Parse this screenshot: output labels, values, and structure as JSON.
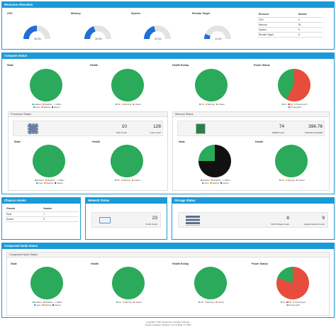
{
  "resource": {
    "title": "Resource Allocation",
    "gauges": [
      {
        "label": "CPU",
        "value": "50.0%",
        "fraction": 0.5,
        "color": "#1e6fd6"
      },
      {
        "label": "Memory",
        "value": "40.0%",
        "fraction": 0.4,
        "color": "#1e6fd6"
      },
      {
        "label": "System",
        "value": "42.0%",
        "fraction": 0.42,
        "color": "#1e6fd6"
      },
      {
        "label": "Remote Target",
        "value": "12.5%",
        "fraction": 0.125,
        "color": "#1e6fd6"
      }
    ],
    "table": {
      "headers": [
        "Resource",
        "Number"
      ],
      "rows": [
        [
          "CPU",
          "5"
        ],
        [
          "Memory",
          "50"
        ],
        [
          "System",
          "5"
        ],
        [
          "Remote Target",
          "8"
        ]
      ]
    }
  },
  "compute": {
    "title": "Compute Status",
    "pies": [
      {
        "label": "State",
        "legend": [
          [
            "Enabled",
            "#2aaa5a"
          ],
          [
            "Disabled",
            "#e74c3c"
          ],
          [
            "Offline",
            "#ccc"
          ],
          [
            "Intest",
            "#1e6fd6"
          ],
          [
            "Starting",
            "#f39c12"
          ],
          [
            "Absent",
            "#111"
          ]
        ]
      },
      {
        "label": "Health",
        "legend": [
          [
            "OK",
            "#2aaa5a"
          ],
          [
            "Warning",
            "#f39c12"
          ],
          [
            "Critical",
            "#e74c3c"
          ]
        ]
      },
      {
        "label": "Health Rollup",
        "legend": [
          [
            "OK",
            "#2aaa5a"
          ],
          [
            "Warning",
            "#f39c12"
          ],
          [
            "Critical",
            "#e74c3c"
          ]
        ]
      },
      {
        "label": "Power Status",
        "legend": [
          [
            "On",
            "#2aaa5a"
          ],
          [
            "Off",
            "#e74c3c"
          ],
          [
            "PoweringOn",
            "#f39c12"
          ],
          [
            "PoweringOff",
            "#999"
          ]
        ]
      }
    ],
    "processor": {
      "title": "Processor Status",
      "count": "10",
      "count_label": "CPU Count",
      "cores": "128",
      "cores_label": "Core Count",
      "state_label": "State",
      "health_label": "Health"
    },
    "memory": {
      "title": "Memory Status",
      "count": "74",
      "count_label": "DIMM Count",
      "total": "396.76",
      "total_label": "Total Memory(GiB)",
      "state_label": "State",
      "health_label": "Health"
    }
  },
  "chassis": {
    "title": "Chassis Assets",
    "headers": [
      "Chassis",
      "Number"
    ],
    "rows": [
      [
        "Rack",
        "1"
      ],
      [
        "Drawer",
        "5"
      ]
    ]
  },
  "network": {
    "title": "Network Status",
    "value": "23",
    "value_label": "VLAN Count"
  },
  "storage": {
    "title": "Storage Status",
    "targets": "8",
    "targets_label": "iSCSI Target Count",
    "volumes": "9",
    "volumes_label": "Logical Volume Count"
  },
  "composed": {
    "title": "Composed Node Status",
    "sub_title": "Composed Node Status",
    "pies": [
      {
        "label": "State"
      },
      {
        "label": "Health"
      },
      {
        "label": "Health Rollup"
      },
      {
        "label": "Power Status"
      }
    ]
  },
  "footer": {
    "line1": "Copyright © 2017 Supermicro. All rights reserved.",
    "line2": "Version evaluation, Revision: 2.1.0.2 Build YYYYDD"
  }
}
